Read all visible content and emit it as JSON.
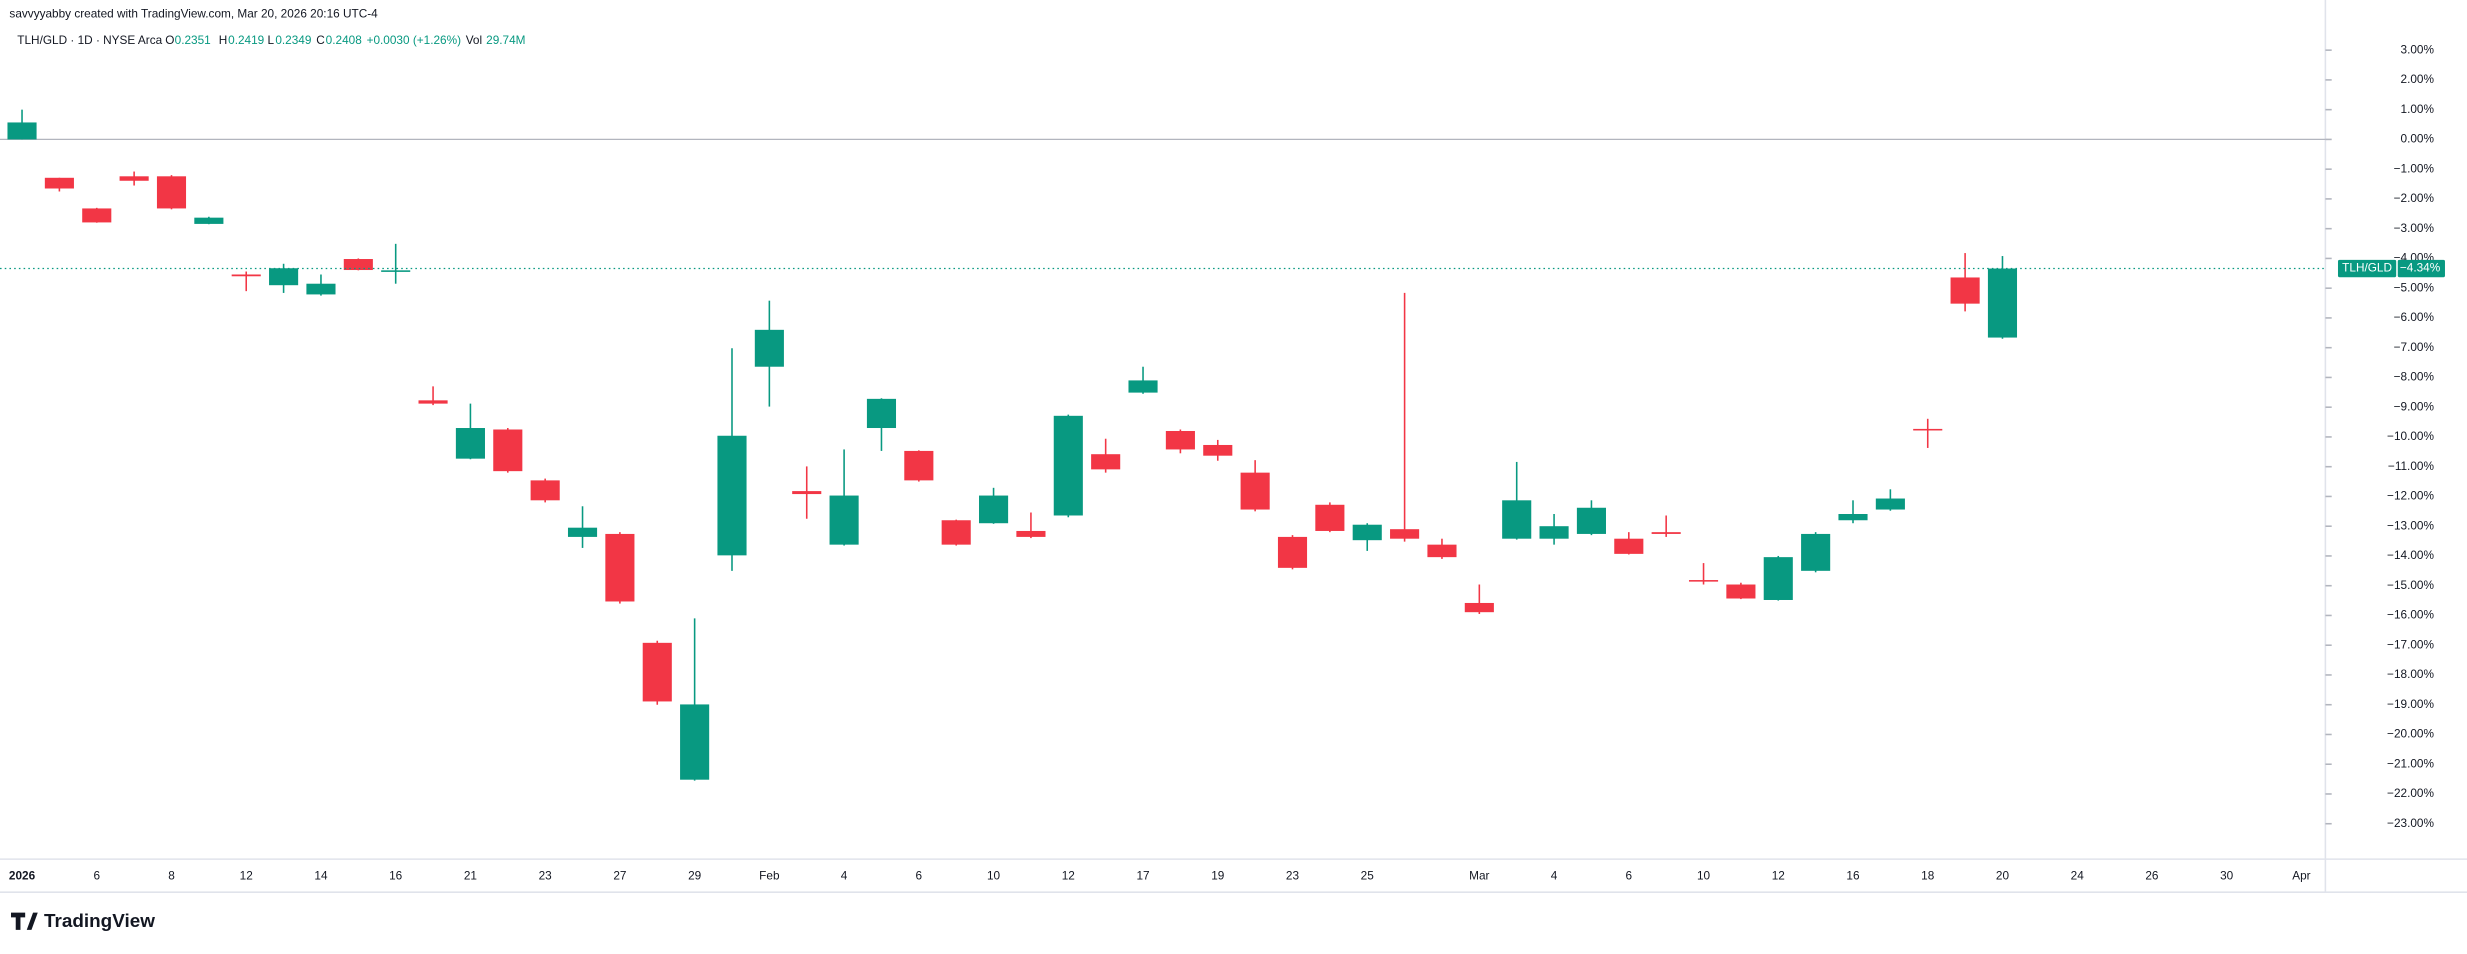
{
  "attribution": "savvyyabby created with TradingView.com, Mar 20, 2026 20:16 UTC-4",
  "brand": "TradingView",
  "legend": {
    "symbol": "TLH/GLD · 1D · NYSE Arca",
    "o_label": "O",
    "o": "0.2351",
    "h_label": "H",
    "h": "0.2419",
    "l_label": "L",
    "l": "0.2349",
    "c_label": "C",
    "c": "0.2408",
    "change": "+0.0030 (+1.26%)",
    "vol_label": "Vol",
    "vol": "29.74M"
  },
  "chart_data": {
    "type": "candlestick",
    "up_color": "#089981",
    "down_color": "#f23645",
    "categories": [
      "2026",
      null,
      "6",
      null,
      "8",
      null,
      "12",
      null,
      "14",
      null,
      "16",
      null,
      "21",
      null,
      "23",
      null,
      "27",
      null,
      "29",
      null,
      "Feb",
      null,
      "4",
      null,
      "6",
      null,
      "10",
      null,
      "12",
      null,
      "17",
      null,
      "19",
      null,
      "23",
      null,
      "25",
      null,
      null,
      "Mar",
      null,
      "4",
      null,
      "6",
      null,
      "10",
      null,
      "12",
      null,
      "16",
      null,
      "18",
      null,
      "20",
      null,
      "24",
      null,
      "26",
      null,
      "30",
      null,
      "Apr"
    ],
    "open": [
      0,
      -1.29,
      -2.32,
      -1.24,
      -1.24,
      -2.84,
      -4.54,
      -4.9,
      -5.21,
      -4.02,
      -4.44,
      -8.77,
      -10.73,
      -9.75,
      -11.46,
      -13.36,
      -13.26,
      -16.92,
      -21.52,
      -13.98,
      -7.64,
      -11.82,
      -13.62,
      -9.7,
      -10.47,
      -12.8,
      -12.9,
      -13.16,
      -12.64,
      -10.58,
      -8.51,
      -9.8,
      -10.27,
      -11.2,
      -13.36,
      -12.28,
      -13.47,
      -13.1,
      -13.62,
      -15.58,
      -13.42,
      -13.42,
      -13.26,
      -13.42,
      -13.2,
      -14.81,
      -14.96,
      -15.48,
      -14.5,
      -12.8,
      -12.44,
      -9.73,
      -4.64,
      -6.66,
      null,
      null,
      null,
      null,
      null,
      null,
      null,
      null
    ],
    "high": [
      1.0,
      -1.29,
      -2.3,
      -1.08,
      -1.2,
      -2.6,
      -4.44,
      -4.18,
      -4.54,
      -4.0,
      -3.51,
      -8.3,
      -8.88,
      -9.7,
      -11.4,
      -12.33,
      -13.2,
      -16.85,
      -16.1,
      -7.02,
      -5.42,
      -10.99,
      -10.42,
      -8.7,
      -10.45,
      -12.78,
      -11.71,
      -12.54,
      -9.25,
      -10.06,
      -7.64,
      -9.75,
      -10.1,
      -10.78,
      -13.3,
      -12.2,
      -12.9,
      -5.16,
      -13.42,
      -14.96,
      -10.84,
      -12.59,
      -12.13,
      -13.2,
      -12.64,
      -14.24,
      -14.9,
      -14.0,
      -13.2,
      -12.13,
      -11.76,
      -9.39,
      -3.82,
      -3.92,
      null,
      null,
      null,
      null,
      null,
      null,
      null,
      null
    ],
    "low": [
      0,
      -1.75,
      -2.8,
      -1.55,
      -2.35,
      -2.85,
      -5.1,
      -5.16,
      -5.25,
      -4.4,
      -4.85,
      -8.93,
      -10.75,
      -11.2,
      -12.2,
      -13.73,
      -15.6,
      -19.0,
      -21.55,
      -14.5,
      -8.98,
      -12.75,
      -13.65,
      -10.47,
      -11.5,
      -13.65,
      -12.92,
      -13.4,
      -12.7,
      -11.2,
      -8.55,
      -10.55,
      -10.8,
      -12.5,
      -14.45,
      -13.2,
      -13.83,
      -13.52,
      -14.1,
      -15.95,
      -13.45,
      -13.62,
      -13.3,
      -13.95,
      -13.36,
      -14.96,
      -15.45,
      -15.5,
      -14.55,
      -12.9,
      -12.48,
      -10.37,
      -5.78,
      -6.7,
      null,
      null,
      null,
      null,
      null,
      null,
      null,
      null
    ],
    "close": [
      0.57,
      -1.65,
      -2.79,
      -1.39,
      -2.32,
      -2.63,
      -4.6,
      -4.33,
      -4.85,
      -4.39,
      -4.4,
      -8.88,
      -9.7,
      -11.15,
      -12.13,
      -13.05,
      -15.53,
      -18.89,
      -18.99,
      -9.96,
      -6.4,
      -11.92,
      -11.97,
      -8.72,
      -11.46,
      -13.62,
      -11.97,
      -13.36,
      -9.29,
      -11.09,
      -8.1,
      -10.42,
      -10.63,
      -12.44,
      -14.4,
      -13.16,
      -12.95,
      -13.42,
      -14.04,
      -15.89,
      -12.13,
      -13.0,
      -12.38,
      -13.93,
      -13.26,
      -14.86,
      -15.43,
      -14.04,
      -13.26,
      -12.59,
      -12.07,
      -9.78,
      -5.52,
      -4.34,
      null,
      null,
      null,
      null,
      null,
      null,
      null,
      null
    ],
    "ylim": [
      3.3,
      -24.2
    ],
    "yticks": [
      {
        "value": 3,
        "label": "3.00%"
      },
      {
        "value": 2,
        "label": "2.00%"
      },
      {
        "value": 1,
        "label": "1.00%"
      },
      {
        "value": 0,
        "label": "0.00%"
      },
      {
        "value": -1,
        "label": "−1.00%"
      },
      {
        "value": -2,
        "label": "−2.00%"
      },
      {
        "value": -3,
        "label": "−3.00%"
      },
      {
        "value": -4,
        "label": "−4.00%"
      },
      {
        "value": -5,
        "label": "−5.00%"
      },
      {
        "value": -6,
        "label": "−6.00%"
      },
      {
        "value": -7,
        "label": "−7.00%"
      },
      {
        "value": -8,
        "label": "−8.00%"
      },
      {
        "value": -9,
        "label": "−9.00%"
      },
      {
        "value": -10,
        "label": "−10.00%"
      },
      {
        "value": -11,
        "label": "−11.00%"
      },
      {
        "value": -12,
        "label": "−12.00%"
      },
      {
        "value": -13,
        "label": "−13.00%"
      },
      {
        "value": -14,
        "label": "−14.00%"
      },
      {
        "value": -15,
        "label": "−15.00%"
      },
      {
        "value": -16,
        "label": "−16.00%"
      },
      {
        "value": -17,
        "label": "−17.00%"
      },
      {
        "value": -18,
        "label": "−18.00%"
      },
      {
        "value": -19,
        "label": "−19.00%"
      },
      {
        "value": -20,
        "label": "−20.00%"
      },
      {
        "value": -21,
        "label": "−21.00%"
      },
      {
        "value": -22,
        "label": "−22.00%"
      },
      {
        "value": -23,
        "label": "−23.00%"
      }
    ],
    "baseline": 0,
    "last_price": {
      "value": -4.34,
      "label": "−4.34%"
    },
    "last_price_name": "TLH/GLD"
  }
}
